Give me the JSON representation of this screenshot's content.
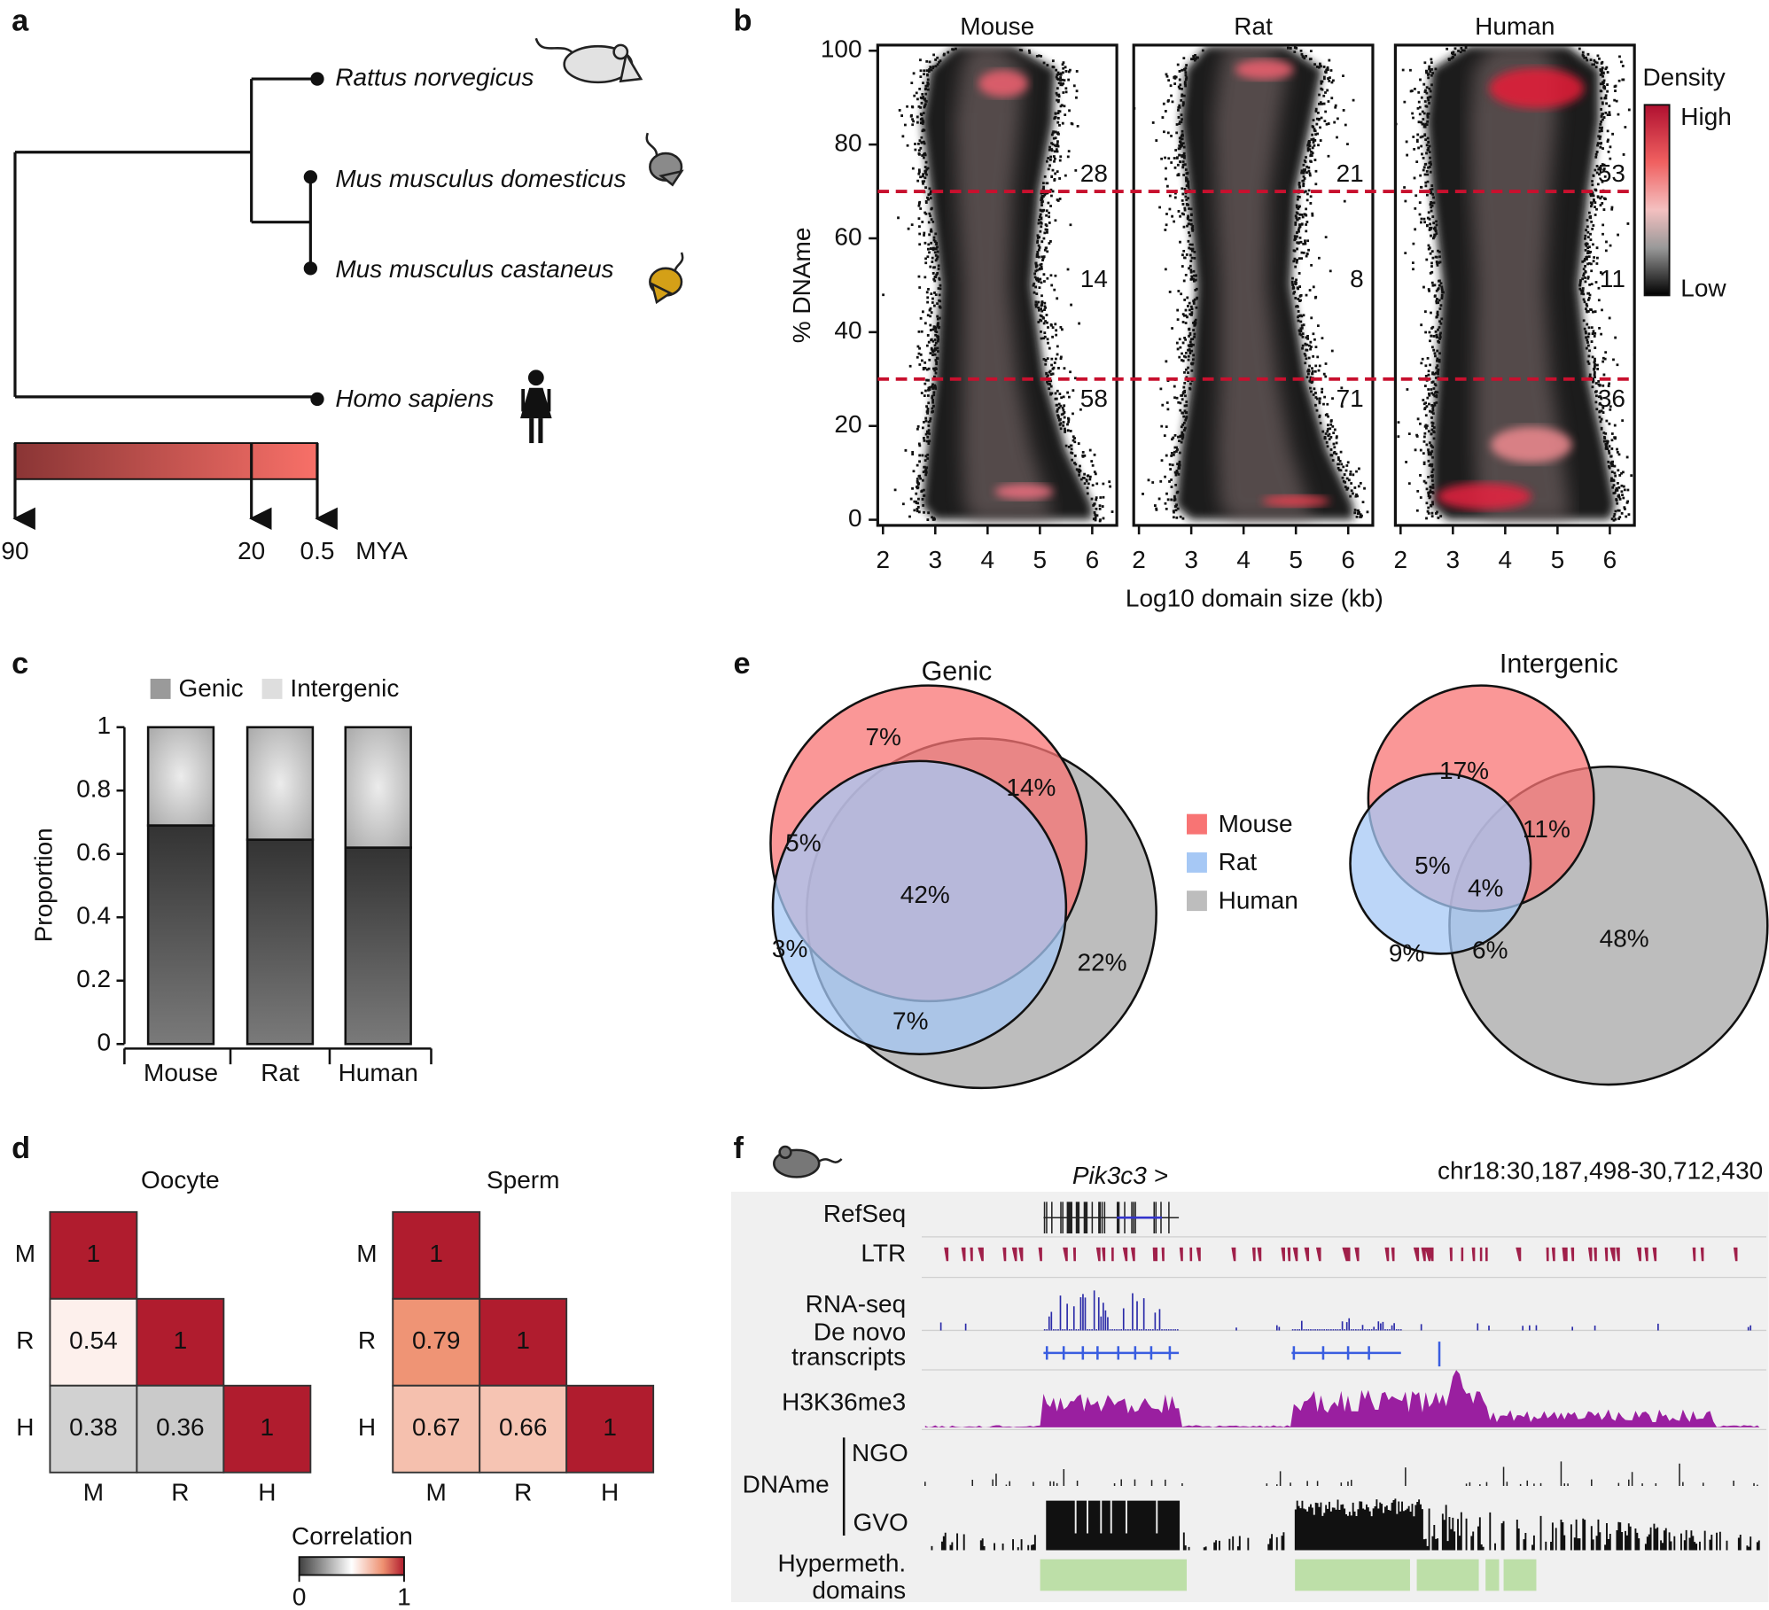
{
  "panel_labels": [
    "a",
    "b",
    "c",
    "d",
    "e",
    "f"
  ],
  "tree": {
    "species": [
      "Rattus norvegicus",
      "Mus musculus domesticus",
      "Mus musculus castaneus",
      "Homo sapiens"
    ],
    "time_ticks": [
      90,
      20,
      0.5
    ],
    "time_unit": "MYA"
  },
  "chart_data": [
    {
      "type": "density",
      "panels": [
        "Mouse",
        "Rat",
        "Human"
      ],
      "xlabel": "Log10 domain size (kb)",
      "ylabel": "% DNAme",
      "xlim": [
        1.9,
        6.47
      ],
      "xticks": [
        2,
        3,
        4,
        5,
        6
      ],
      "ylim": [
        -1.2,
        101.2
      ],
      "yticks": [
        0,
        20,
        40,
        60,
        80,
        100
      ],
      "thresholds": [
        70,
        30
      ],
      "threshold_color": "#c8102e",
      "region_counts": [
        [
          28,
          14,
          58
        ],
        [
          21,
          8,
          71
        ],
        [
          53,
          11,
          36
        ]
      ],
      "legend_title": "Density",
      "legend_labels": [
        "High",
        "Low"
      ]
    },
    {
      "type": "bar",
      "stacked": true,
      "categories": [
        "Mouse",
        "Rat",
        "Human"
      ],
      "series": [
        {
          "name": "Genic",
          "color": "#9a9a9a",
          "values": [
            0.69,
            0.645,
            0.62
          ]
        },
        {
          "name": "Intergenic",
          "color": "#dedede",
          "values": [
            0.31,
            0.355,
            0.38
          ]
        }
      ],
      "ylabel": "Proportion",
      "ylim": [
        0,
        1
      ],
      "yticks": [
        0,
        0.2,
        0.4,
        0.6,
        0.8,
        1
      ]
    },
    {
      "type": "heatmap",
      "title": "Oocyte",
      "rows": [
        "M",
        "R",
        "H"
      ],
      "columns": [
        "M",
        "R",
        "H"
      ],
      "values": [
        [
          1,
          null,
          null
        ],
        [
          0.54,
          1,
          null
        ],
        [
          0.38,
          0.36,
          1
        ]
      ]
    },
    {
      "type": "heatmap",
      "title": "Sperm",
      "rows": [
        "M",
        "R",
        "H"
      ],
      "columns": [
        "M",
        "R",
        "H"
      ],
      "values": [
        [
          1,
          null,
          null
        ],
        [
          0.79,
          1,
          null
        ],
        [
          0.67,
          0.66,
          1
        ]
      ]
    },
    {
      "type": "colorbar",
      "title": "Correlation",
      "ticks": [
        0,
        1
      ],
      "colorscale": [
        [
          0,
          "#404040"
        ],
        [
          0.5,
          "#ffffff"
        ],
        [
          0.8,
          "#ee9070"
        ],
        [
          1,
          "#b01c2e"
        ]
      ]
    },
    {
      "type": "venn",
      "title": "Genic",
      "sets": [
        {
          "name": "Mouse",
          "color": "#f87474"
        },
        {
          "name": "Rat",
          "color": "#a6c8f5"
        },
        {
          "name": "Human",
          "color": "#bdbdbd"
        }
      ],
      "values": [
        7,
        14,
        5,
        42,
        3,
        7,
        22
      ],
      "value_labels": [
        "7%",
        "14%",
        "5%",
        "42%",
        "3%",
        "7%",
        "22%"
      ]
    },
    {
      "type": "venn",
      "title": "Intergenic",
      "values": [
        17,
        11,
        5,
        4,
        9,
        6,
        48
      ],
      "value_labels": [
        "17%",
        "11%",
        "5%",
        "4%",
        "9%",
        "6%",
        "48%"
      ]
    }
  ],
  "browser": {
    "gene": "Pik3c3 >",
    "region": "chr18:30,187,498-30,712,430",
    "tracks": [
      [
        "RefSeq"
      ],
      [
        "LTR"
      ],
      [
        "RNA-seq"
      ],
      [
        "De novo",
        "transcripts"
      ],
      [
        "H3K36me3"
      ],
      [
        "Hypermeth.",
        "domains"
      ]
    ],
    "group": "DNAme",
    "subtracks": [
      "NGO",
      "GVO"
    ]
  }
}
